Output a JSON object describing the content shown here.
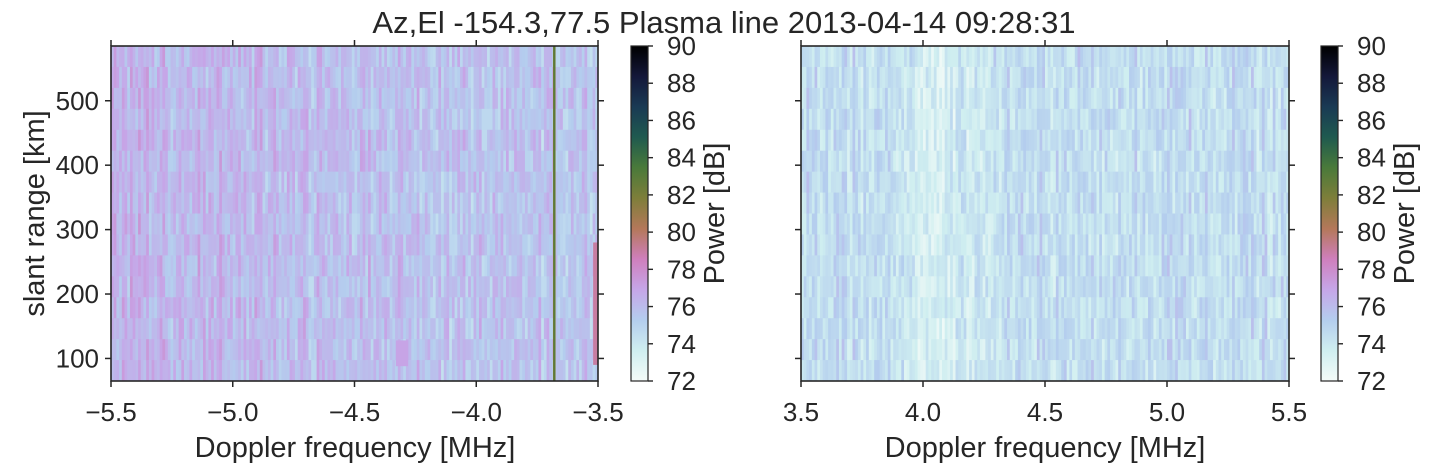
{
  "figure": {
    "title": "Az,El -154.3,77.5  Plasma line 2013-04-14 09:28:31"
  },
  "colors": {
    "colormap": [
      "#f4fbf8",
      "#cfeef0",
      "#b4cdee",
      "#c6a6e8",
      "#cf7fbd",
      "#b4785a",
      "#7e7e3a",
      "#4a7a3a",
      "#1f5a4f",
      "#1a3a54",
      "#14183a",
      "#000000"
    ],
    "axis": "#262626",
    "background": "#ffffff"
  },
  "chart_data": [
    {
      "type": "heatmap",
      "panel": "left",
      "xlabel": "Doppler frequency [MHz]",
      "ylabel": "slant range [km]",
      "xlim": [
        -5.5,
        -3.5
      ],
      "ylim": [
        65,
        585
      ],
      "xticks": [
        -5.5,
        -5.0,
        -4.5,
        -4.0,
        -3.5
      ],
      "xtick_labels": [
        "−5.5",
        "−5.0",
        "−4.5",
        "−4.0",
        "−3.5"
      ],
      "yticks": [
        100,
        200,
        300,
        400,
        500
      ],
      "ytick_labels": [
        "100",
        "200",
        "300",
        "400",
        "500"
      ],
      "colorbar": {
        "label": "Power [dB]",
        "min": 72,
        "max": 90,
        "ticks": [
          "72",
          "74",
          "76",
          "78",
          "80",
          "82",
          "84",
          "86",
          "88",
          "90"
        ]
      },
      "typical_power_db": 75.5,
      "features": [
        {
          "kind": "vertical_line",
          "x": -3.68,
          "power_db": 82
        },
        {
          "kind": "patch",
          "x": [
            -4.33,
            -4.28
          ],
          "y": [
            88,
            128
          ],
          "power_db": 77
        },
        {
          "kind": "edge_strip",
          "x": [
            -3.52,
            -3.5
          ],
          "y": [
            90,
            280
          ],
          "power_db": 79
        }
      ]
    },
    {
      "type": "heatmap",
      "panel": "right",
      "xlabel": "Doppler frequency [MHz]",
      "ylabel": "",
      "xlim": [
        3.5,
        5.5
      ],
      "ylim": [
        65,
        585
      ],
      "xticks": [
        3.5,
        4.0,
        4.5,
        5.0,
        5.5
      ],
      "xtick_labels": [
        "3.5",
        "4.0",
        "4.5",
        "5.0",
        "5.5"
      ],
      "yticks": [
        100,
        200,
        300,
        400,
        500
      ],
      "colorbar": {
        "label": "Power [dB]",
        "min": 72,
        "max": 90,
        "ticks": [
          "72",
          "74",
          "76",
          "78",
          "80",
          "82",
          "84",
          "86",
          "88",
          "90"
        ]
      },
      "typical_power_db": 74.5,
      "features": []
    }
  ]
}
